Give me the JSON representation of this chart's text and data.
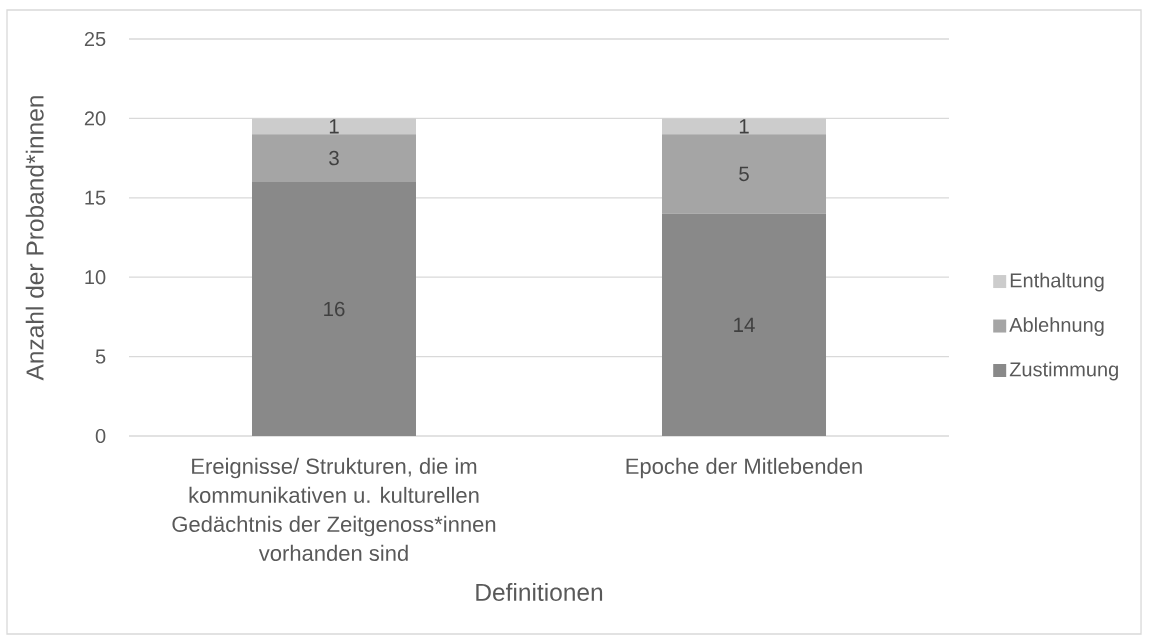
{
  "chart_data": {
    "type": "bar",
    "stacked": true,
    "xlabel": "Definitionen",
    "ylabel": "Anzahl der Proband*innen",
    "categories": [
      "Ereignisse/ Strukturen, die im kommunikativen u. kulturellen Gedächtnis der Zeitgenoss*innen vorhanden sind",
      "Epoche der Mitlebenden"
    ],
    "series": [
      {
        "name": "Zustimmung",
        "color": "#898989",
        "values": [
          16,
          14
        ]
      },
      {
        "name": "Ablehnung",
        "color": "#a5a5a5",
        "values": [
          3,
          5
        ]
      },
      {
        "name": "Enthaltung",
        "color": "#cccccc",
        "values": [
          1,
          1
        ]
      }
    ],
    "ylim": [
      0,
      25
    ],
    "yticks": [
      0,
      5,
      10,
      15,
      20,
      25
    ],
    "grid": "y",
    "data_labels": true,
    "legend": "right"
  }
}
